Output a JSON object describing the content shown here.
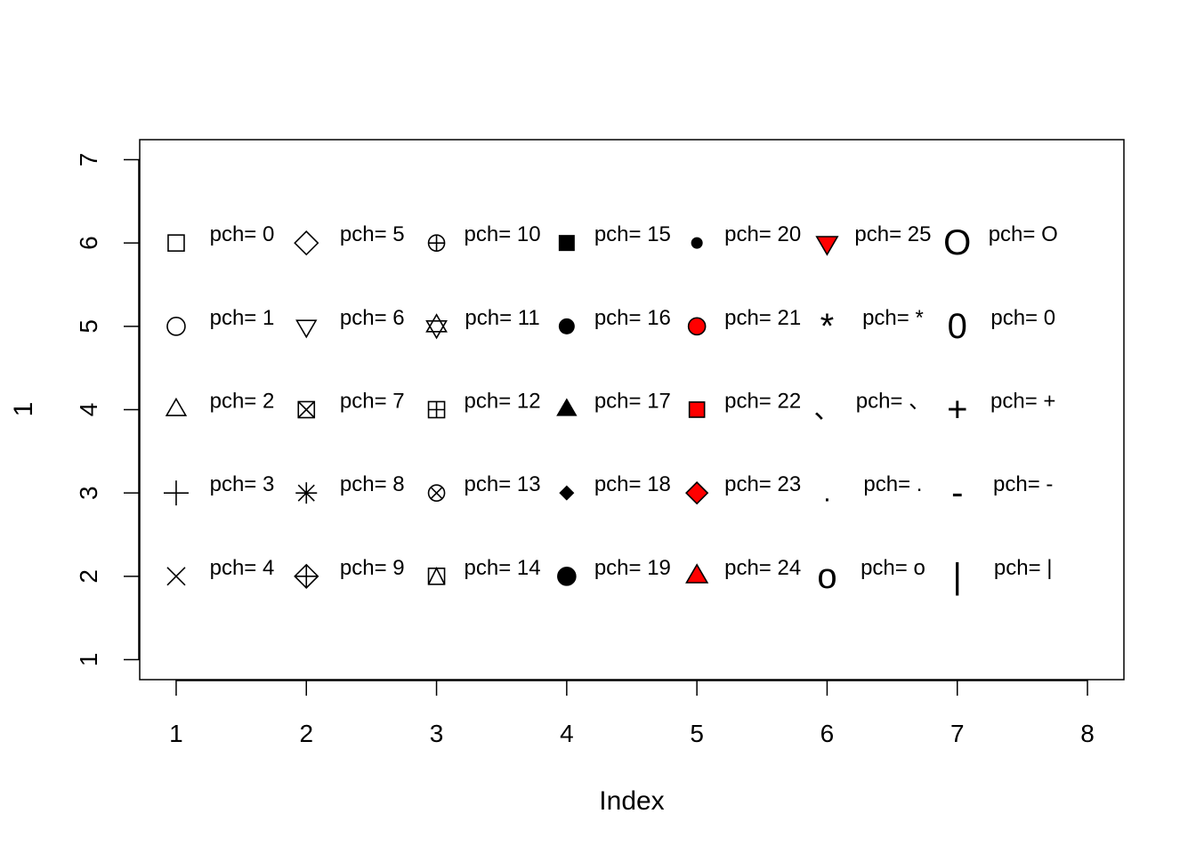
{
  "chart_data": {
    "type": "scatter",
    "xlabel": "Index",
    "ylabel": "1",
    "xlim": [
      0.72,
      8.28
    ],
    "ylim": [
      0.76,
      7.24
    ],
    "x_ticks": [
      1,
      2,
      3,
      4,
      5,
      6,
      7,
      8
    ],
    "y_ticks": [
      1,
      2,
      3,
      4,
      5,
      6,
      7
    ],
    "fill_color": "#ff0000",
    "points": [
      {
        "x": 1,
        "y": 6,
        "pch": "0",
        "label": "pch= 0"
      },
      {
        "x": 1,
        "y": 5,
        "pch": "1",
        "label": "pch= 1"
      },
      {
        "x": 1,
        "y": 4,
        "pch": "2",
        "label": "pch= 2"
      },
      {
        "x": 1,
        "y": 3,
        "pch": "3",
        "label": "pch= 3"
      },
      {
        "x": 1,
        "y": 2,
        "pch": "4",
        "label": "pch= 4"
      },
      {
        "x": 2,
        "y": 6,
        "pch": "5",
        "label": "pch= 5"
      },
      {
        "x": 2,
        "y": 5,
        "pch": "6",
        "label": "pch= 6"
      },
      {
        "x": 2,
        "y": 4,
        "pch": "7",
        "label": "pch= 7"
      },
      {
        "x": 2,
        "y": 3,
        "pch": "8",
        "label": "pch= 8"
      },
      {
        "x": 2,
        "y": 2,
        "pch": "9",
        "label": "pch= 9"
      },
      {
        "x": 3,
        "y": 6,
        "pch": "10",
        "label": "pch= 10"
      },
      {
        "x": 3,
        "y": 5,
        "pch": "11",
        "label": "pch= 11"
      },
      {
        "x": 3,
        "y": 4,
        "pch": "12",
        "label": "pch= 12"
      },
      {
        "x": 3,
        "y": 3,
        "pch": "13",
        "label": "pch= 13"
      },
      {
        "x": 3,
        "y": 2,
        "pch": "14",
        "label": "pch= 14"
      },
      {
        "x": 4,
        "y": 6,
        "pch": "15",
        "label": "pch= 15"
      },
      {
        "x": 4,
        "y": 5,
        "pch": "16",
        "label": "pch= 16"
      },
      {
        "x": 4,
        "y": 4,
        "pch": "17",
        "label": "pch= 17"
      },
      {
        "x": 4,
        "y": 3,
        "pch": "18",
        "label": "pch= 18"
      },
      {
        "x": 4,
        "y": 2,
        "pch": "19",
        "label": "pch= 19"
      },
      {
        "x": 5,
        "y": 6,
        "pch": "20",
        "label": "pch= 20"
      },
      {
        "x": 5,
        "y": 5,
        "pch": "21",
        "label": "pch= 21"
      },
      {
        "x": 5,
        "y": 4,
        "pch": "22",
        "label": "pch= 22"
      },
      {
        "x": 5,
        "y": 3,
        "pch": "23",
        "label": "pch= 23"
      },
      {
        "x": 5,
        "y": 2,
        "pch": "24",
        "label": "pch= 24"
      },
      {
        "x": 6,
        "y": 6,
        "pch": "25",
        "label": "pch= 25"
      },
      {
        "x": 6,
        "y": 5,
        "pch": "*",
        "label": "pch= *"
      },
      {
        "x": 6,
        "y": 4,
        "pch": "、",
        "label": "pch= 、"
      },
      {
        "x": 6,
        "y": 3,
        "pch": ".",
        "label": "pch= ."
      },
      {
        "x": 6,
        "y": 2,
        "pch": "o",
        "label": "pch= o"
      },
      {
        "x": 7,
        "y": 6,
        "pch": "O",
        "label": "pch= O"
      },
      {
        "x": 7,
        "y": 5,
        "pch": "0c",
        "label": "pch= 0"
      },
      {
        "x": 7,
        "y": 4,
        "pch": "+",
        "label": "pch= +"
      },
      {
        "x": 7,
        "y": 3,
        "pch": "-",
        "label": "pch= -"
      },
      {
        "x": 7,
        "y": 2,
        "pch": "|",
        "label": "pch= |"
      }
    ]
  }
}
